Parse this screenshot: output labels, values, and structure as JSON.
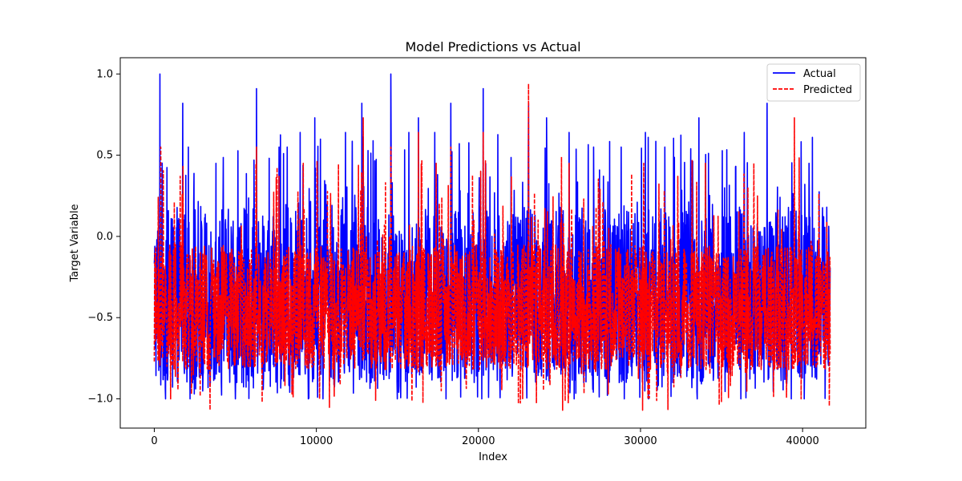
{
  "chart_data": {
    "type": "line",
    "title": "Model Predictions vs Actual",
    "xlabel": "Index",
    "ylabel": "Target Variable",
    "xlim": [
      -2100,
      43900
    ],
    "ylim": [
      -1.18,
      1.1
    ],
    "x_range": [
      0,
      41700
    ],
    "x_ticks": [
      0,
      10000,
      20000,
      30000,
      40000
    ],
    "y_ticks": [
      -1.0,
      -0.5,
      0.0,
      0.5,
      1.0
    ],
    "y_tick_labels": [
      "−1.0",
      "−0.5",
      "0.0",
      "0.5",
      "1.0"
    ],
    "grid": false,
    "legend": {
      "position": "top-right"
    },
    "series": [
      {
        "name": "Actual",
        "color": "#0000ff",
        "style": "solid",
        "approx_band": [
          -0.9,
          0.18
        ],
        "extremes": [
          -1.0,
          1.0
        ],
        "peaks": [
          [
            350,
            1.0
          ],
          [
            1750,
            0.82
          ],
          [
            2100,
            0.55
          ],
          [
            3800,
            0.45
          ],
          [
            5000,
            0.55
          ],
          [
            6300,
            0.91
          ],
          [
            7700,
            0.55
          ],
          [
            8200,
            0.55
          ],
          [
            9000,
            0.64
          ],
          [
            9900,
            0.73
          ],
          [
            11800,
            0.64
          ],
          [
            12800,
            0.82
          ],
          [
            14600,
            1.0
          ],
          [
            15700,
            0.64
          ],
          [
            16300,
            0.73
          ],
          [
            17300,
            0.64
          ],
          [
            18300,
            0.82
          ],
          [
            20300,
            0.91
          ],
          [
            23100,
            0.82
          ],
          [
            24200,
            0.73
          ],
          [
            25600,
            0.64
          ],
          [
            27100,
            0.55
          ],
          [
            28800,
            0.55
          ],
          [
            30300,
            0.64
          ],
          [
            31500,
            0.55
          ],
          [
            33600,
            0.73
          ],
          [
            36400,
            0.64
          ],
          [
            37800,
            0.82
          ],
          [
            39300,
            0.82
          ],
          [
            40400,
            0.45
          ],
          [
            41500,
            0.18
          ]
        ],
        "troughs": [
          [
            700,
            -1.0
          ],
          [
            2200,
            -1.0
          ],
          [
            5000,
            -1.0
          ],
          [
            9500,
            -1.0
          ],
          [
            10400,
            -1.0
          ],
          [
            15000,
            -1.0
          ],
          [
            18000,
            -1.0
          ],
          [
            20200,
            -1.0
          ],
          [
            25900,
            -1.0
          ],
          [
            29000,
            -1.0
          ],
          [
            30500,
            -1.0
          ],
          [
            33500,
            -1.0
          ],
          [
            36200,
            -1.0
          ],
          [
            39300,
            -1.0
          ],
          [
            40100,
            -1.0
          ]
        ]
      },
      {
        "name": "Predicted",
        "color": "#ff0000",
        "style": "dashed",
        "approx_band": [
          -0.82,
          -0.05
        ],
        "extremes": [
          -1.07,
          0.94
        ],
        "peaks": [
          [
            400,
            0.55
          ],
          [
            1600,
            0.37
          ],
          [
            2300,
            0.45
          ],
          [
            6300,
            0.55
          ],
          [
            7700,
            0.37
          ],
          [
            9200,
            0.45
          ],
          [
            12900,
            0.73
          ],
          [
            14600,
            0.55
          ],
          [
            16300,
            0.64
          ],
          [
            17400,
            0.45
          ],
          [
            18300,
            0.55
          ],
          [
            20300,
            0.64
          ],
          [
            23100,
            0.94
          ],
          [
            25600,
            0.45
          ],
          [
            30200,
            0.45
          ],
          [
            32300,
            0.37
          ],
          [
            34000,
            0.45
          ],
          [
            37000,
            0.45
          ],
          [
            39500,
            0.73
          ],
          [
            41500,
            0.09
          ]
        ],
        "troughs": [
          [
            1000,
            -1.0
          ],
          [
            2300,
            -0.97
          ],
          [
            8500,
            -0.97
          ],
          [
            10200,
            -1.0
          ],
          [
            17700,
            -0.95
          ],
          [
            25200,
            -1.07
          ],
          [
            28000,
            -0.97
          ],
          [
            31000,
            -1.01
          ],
          [
            35000,
            -1.02
          ],
          [
            39000,
            -0.99
          ]
        ]
      }
    ]
  }
}
